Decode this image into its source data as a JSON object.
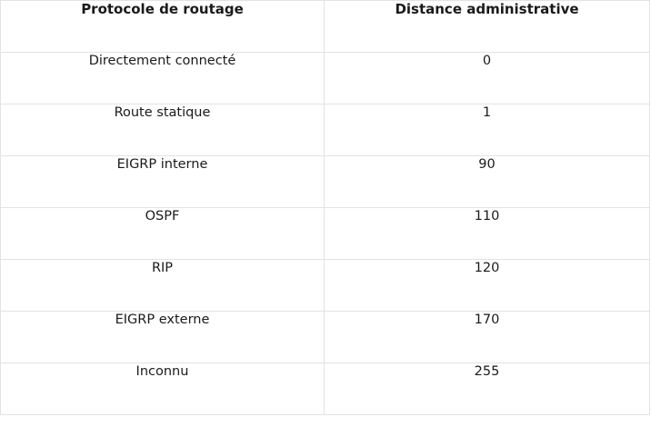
{
  "table": {
    "headers": {
      "protocol": "Protocole de routage",
      "distance": "Distance administrative"
    },
    "rows": [
      {
        "protocol": "Directement connecté",
        "distance": "0"
      },
      {
        "protocol": "Route statique",
        "distance": "1"
      },
      {
        "protocol": "EIGRP interne",
        "distance": "90"
      },
      {
        "protocol": "OSPF",
        "distance": "110"
      },
      {
        "protocol": "RIP",
        "distance": "120"
      },
      {
        "protocol": "EIGRP externe",
        "distance": "170"
      },
      {
        "protocol": "Inconnu",
        "distance": "255"
      }
    ]
  }
}
